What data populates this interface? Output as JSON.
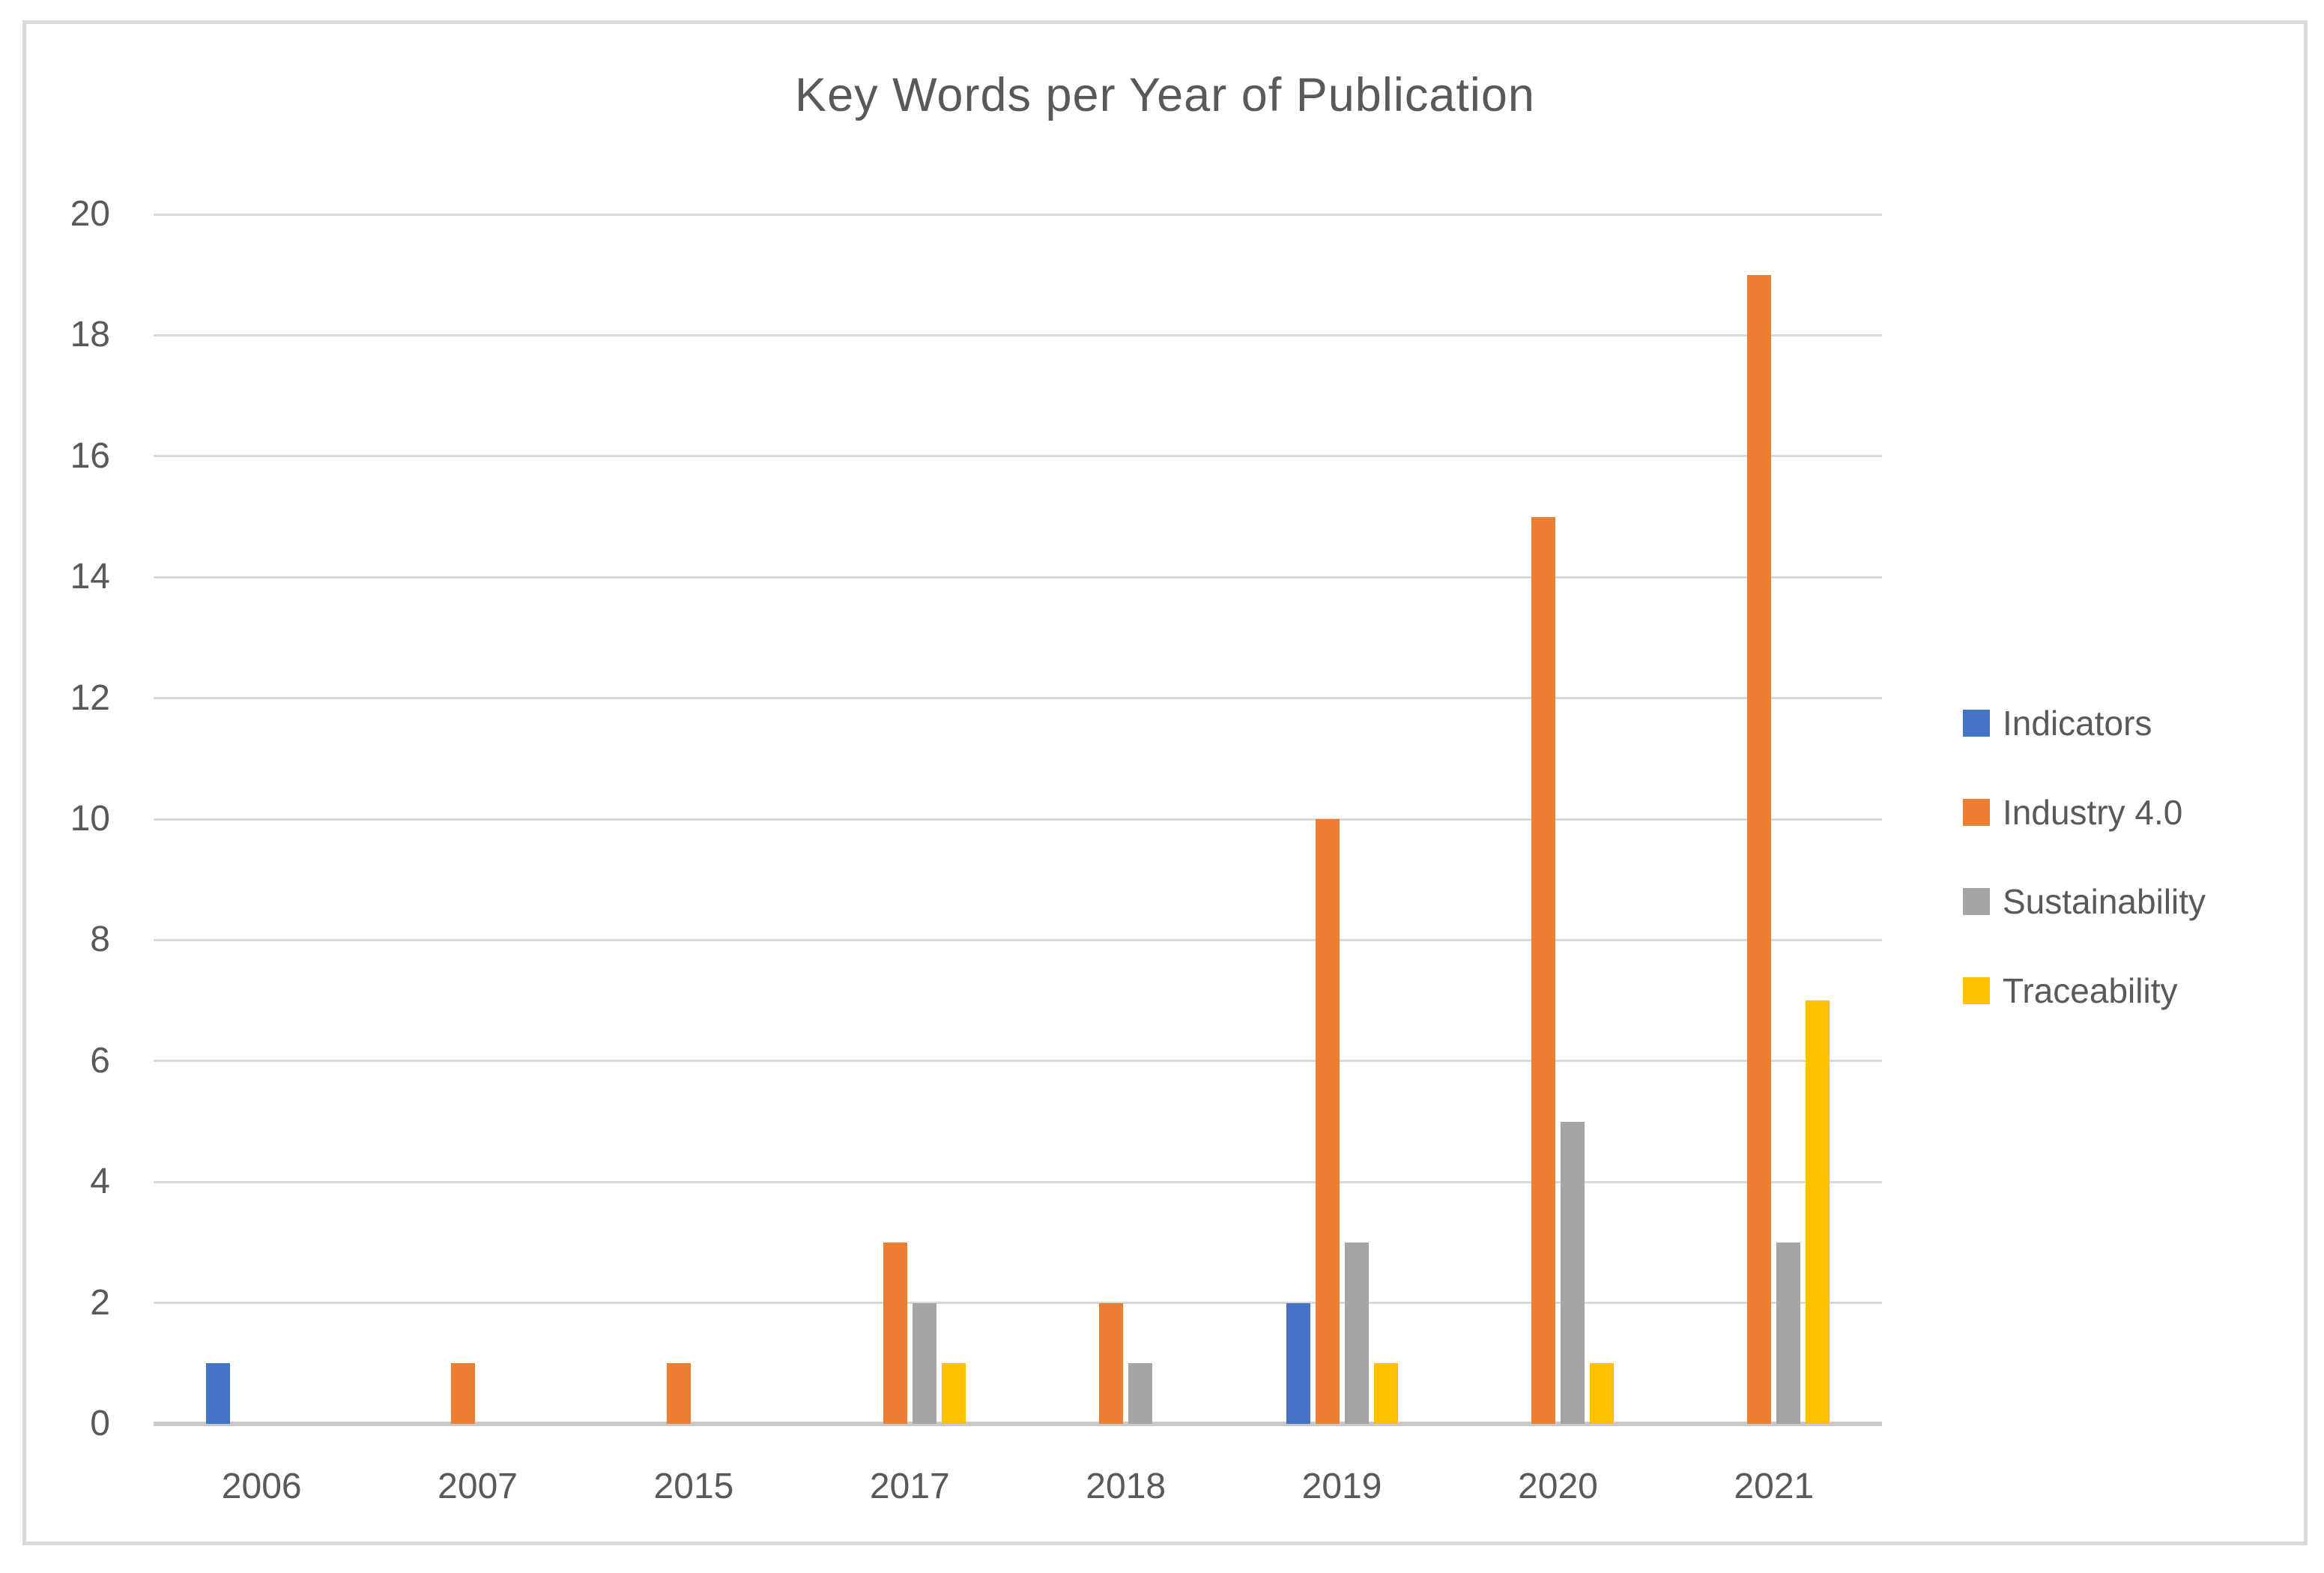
{
  "figure": {
    "background": "#ffffff",
    "frame_border_color": "#d9d9d9"
  },
  "chart_data": {
    "type": "bar",
    "title": "Key Words per Year of Publication",
    "categories": [
      "2006",
      "2007",
      "2015",
      "2017",
      "2018",
      "2019",
      "2020",
      "2021"
    ],
    "series": [
      {
        "name": "Indicators",
        "color": "#4472C4",
        "values": [
          1,
          0,
          0,
          0,
          0,
          2,
          0,
          0
        ]
      },
      {
        "name": "Industry 4.0",
        "color": "#ED7D31",
        "values": [
          0,
          1,
          1,
          3,
          2,
          10,
          15,
          19
        ]
      },
      {
        "name": "Sustainability",
        "color": "#A5A5A5",
        "values": [
          0,
          0,
          0,
          2,
          1,
          3,
          5,
          3
        ]
      },
      {
        "name": "Traceability",
        "color": "#FFC000",
        "values": [
          0,
          0,
          0,
          1,
          0,
          1,
          1,
          7
        ]
      }
    ],
    "xlabel": "",
    "ylabel": "",
    "ylim": [
      0,
      20
    ],
    "ytick_step": 2,
    "y_tick_labels": [
      "0",
      "2",
      "4",
      "6",
      "8",
      "10",
      "12",
      "14",
      "16",
      "18",
      "20"
    ],
    "grid": "horizontal",
    "legend_position": "right",
    "text_color": "#595959",
    "gridline_color": "#D9D9D9",
    "axis_line_color": "#C9C9C9"
  }
}
